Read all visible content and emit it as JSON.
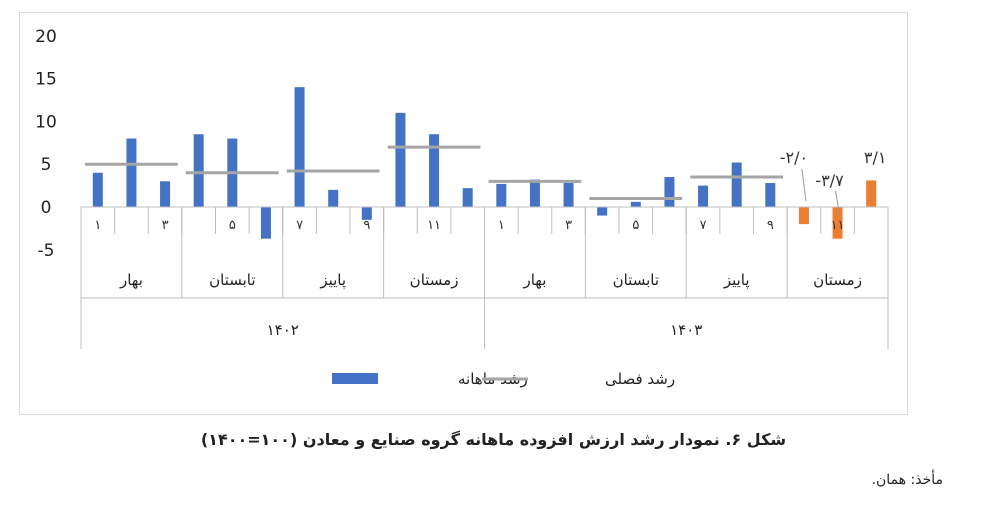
{
  "chart_data": {
    "type": "bar",
    "y_ticks": [
      "20",
      "15",
      "10",
      "5",
      "0",
      "-5"
    ],
    "ylim": [
      -5,
      20
    ],
    "grid": false,
    "legend_position": "bottom",
    "colors": {
      "monthly": "#4472C4",
      "highlight": "#ED7D31",
      "seasonal": "#A5A5A5",
      "axis": "#bfbfbf"
    },
    "years": [
      {
        "label": "۱۴۰۲",
        "seasons": [
          0,
          1,
          2,
          3
        ]
      },
      {
        "label": "۱۴۰۳",
        "seasons": [
          4,
          5,
          6,
          7
        ]
      }
    ],
    "seasons": [
      {
        "label": "بهار",
        "seasonal": 5.0,
        "months": [
          "۱",
          "",
          "۳"
        ],
        "values": [
          4.0,
          8.0,
          3.0
        ]
      },
      {
        "label": "تابستان",
        "seasonal": 4.0,
        "months": [
          "",
          "۵",
          ""
        ],
        "values": [
          8.5,
          8.0,
          -3.7
        ]
      },
      {
        "label": "پاییز",
        "seasonal": 4.2,
        "months": [
          "۷",
          "",
          "۹"
        ],
        "values": [
          14.0,
          2.0,
          -1.5
        ]
      },
      {
        "label": "زمستان",
        "seasonal": 7.0,
        "months": [
          "",
          "۱۱",
          ""
        ],
        "values": [
          11.0,
          8.5,
          2.2
        ]
      },
      {
        "label": "بهار",
        "seasonal": 3.0,
        "months": [
          "۱",
          "",
          "۳"
        ],
        "values": [
          2.7,
          3.2,
          2.8
        ]
      },
      {
        "label": "تابستان",
        "seasonal": 1.0,
        "months": [
          "",
          "۵",
          ""
        ],
        "values": [
          -1.0,
          0.6,
          3.5
        ]
      },
      {
        "label": "پاییز",
        "seasonal": 3.5,
        "months": [
          "۷",
          "",
          "۹"
        ],
        "values": [
          2.5,
          5.2,
          2.8
        ]
      },
      {
        "label": "زمستان",
        "seasonal": null,
        "months": [
          "",
          "۱۱",
          ""
        ],
        "values": [
          -2.0,
          -3.7,
          3.1
        ],
        "highlight": true
      }
    ],
    "data_labels": [
      "-۲/۰",
      "-۳/۷",
      "۳/۱"
    ],
    "legend": {
      "monthly": "رشد ماهانه",
      "seasonal": "رشد فصلی"
    }
  },
  "caption": "شکل ۶. نمودار رشد ارزش افزوده ماهانه گروه صنایع و معادن (۱۰۰=۱۴۰۰)",
  "source": "مأخذ: همان."
}
